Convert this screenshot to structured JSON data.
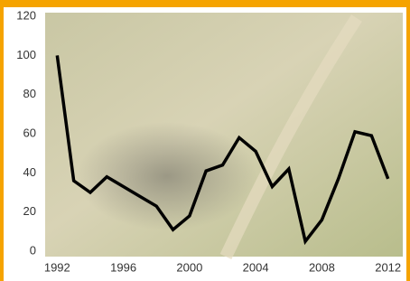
{
  "chart_data": {
    "type": "line",
    "x": [
      1992,
      1993,
      1994,
      1995,
      1996,
      1997,
      1998,
      1999,
      2000,
      2001,
      2002,
      2003,
      2004,
      2005,
      2006,
      2007,
      2008,
      2009,
      2010,
      2011,
      2012
    ],
    "values": [
      100,
      36,
      30,
      38,
      33,
      28,
      23,
      11,
      18,
      41,
      44,
      58,
      51,
      33,
      42,
      5,
      16,
      37,
      61,
      59,
      37
    ],
    "color": "#000000",
    "xlim": [
      1991,
      2013
    ],
    "xticks": [
      1992,
      1996,
      2000,
      2004,
      2008,
      2012
    ],
    "ylim": [
      0,
      120
    ],
    "yticks": [
      0,
      20,
      40,
      60,
      80,
      100,
      120
    ],
    "grid": false
  }
}
